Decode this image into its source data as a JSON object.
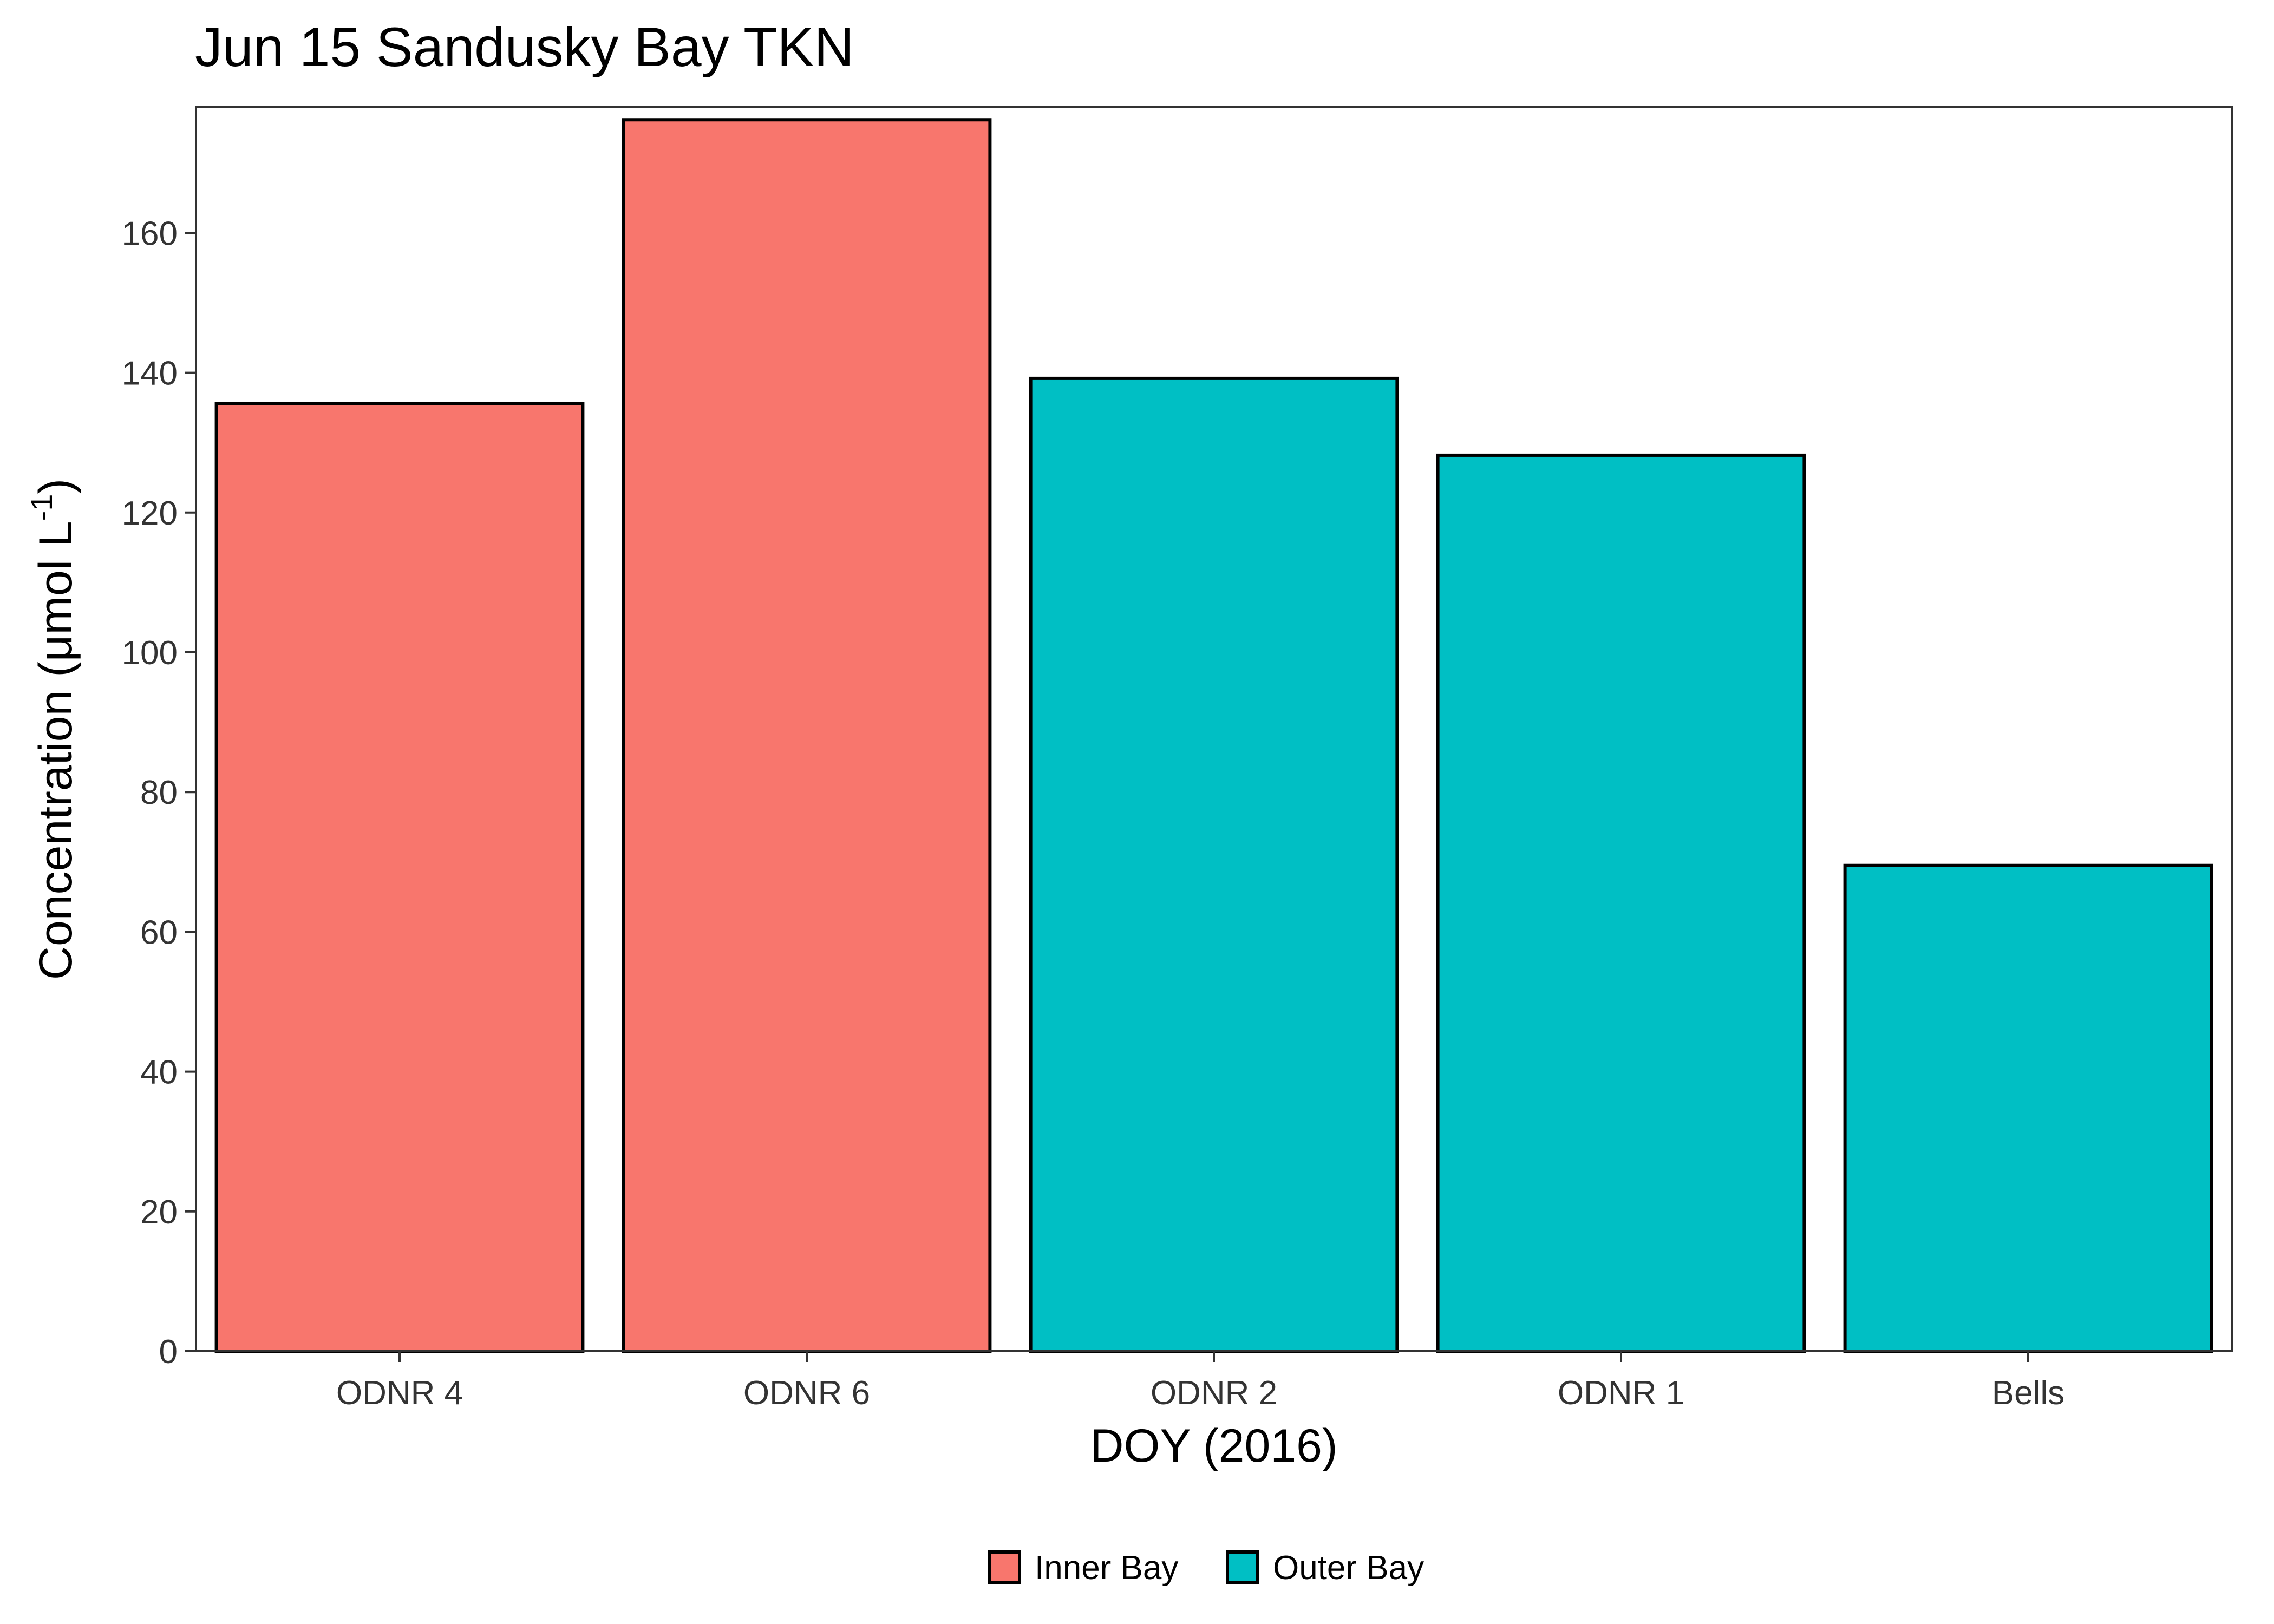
{
  "chart_data": {
    "type": "bar",
    "title": "Jun 15 Sandusky Bay TKN",
    "xlabel": "DOY (2016)",
    "ylabel": {
      "prefix": "Concentration (μmol L",
      "superscript": "-1",
      "suffix": ")"
    },
    "categories": [
      "ODNR 4",
      "ODNR 6",
      "ODNR 2",
      "ODNR 1",
      "Bells"
    ],
    "values": [
      135.6,
      176.2,
      139.2,
      128.2,
      69.5
    ],
    "groups": [
      "Inner Bay",
      "Inner Bay",
      "Outer Bay",
      "Outer Bay",
      "Outer Bay"
    ],
    "ylim": [
      0,
      178
    ],
    "yticks": [
      0,
      20,
      40,
      60,
      80,
      100,
      120,
      140,
      160
    ],
    "grid": false,
    "legend": {
      "position": "bottom",
      "entries": [
        {
          "name": "Inner Bay",
          "color": "#F8766D"
        },
        {
          "name": "Outer Bay",
          "color": "#00BFC4"
        }
      ]
    },
    "colors": {
      "Inner Bay": "#F8766D",
      "Outer Bay": "#00BFC4",
      "bar_outline": "#000000",
      "panel_border": "#333333"
    }
  }
}
